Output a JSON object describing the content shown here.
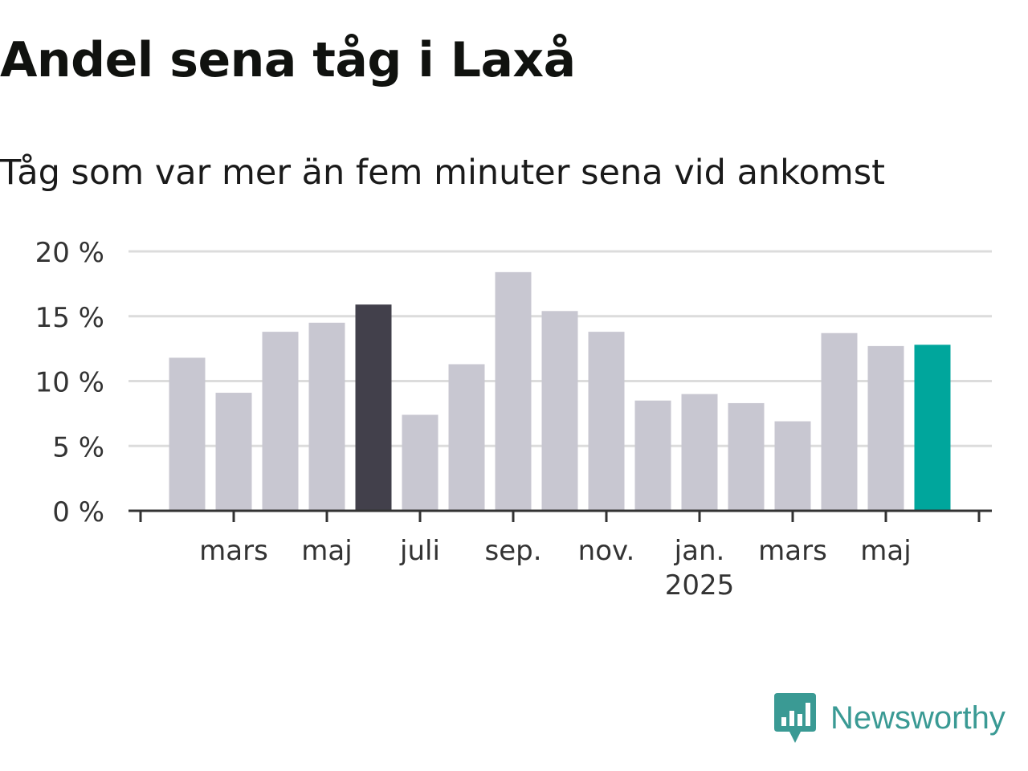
{
  "header": {
    "title": "Andel sena tåg i Laxå",
    "subtitle": "Tåg som var mer än fem minuter sena vid ankomst"
  },
  "brand": {
    "name": "Newsworthy",
    "icon": "newsworthy-logo-icon",
    "color": "#3a9a94"
  },
  "chart_data": {
    "type": "bar",
    "xlabel": "",
    "ylabel": "",
    "ylim": [
      0,
      20
    ],
    "yticks": [
      "0 %",
      "5 %",
      "10 %",
      "15 %",
      "20 %"
    ],
    "grid": true,
    "legend": "none",
    "categories": [
      "2024-02",
      "2024-03",
      "2024-04",
      "2024-05",
      "2024-06",
      "2024-07",
      "2024-08",
      "2024-09",
      "2024-10",
      "2024-11",
      "2024-12",
      "2025-01",
      "2025-02",
      "2025-03",
      "2025-04",
      "2025-05",
      "2025-06"
    ],
    "values": [
      11.8,
      9.1,
      13.8,
      14.5,
      15.9,
      7.4,
      11.3,
      18.4,
      15.4,
      13.8,
      8.5,
      9.0,
      8.3,
      6.9,
      13.7,
      12.7,
      12.8
    ],
    "xtick_labels": [
      {
        "category": "2024-03",
        "label": "mars"
      },
      {
        "category": "2024-05",
        "label": "maj"
      },
      {
        "category": "2024-07",
        "label": "juli"
      },
      {
        "category": "2024-09",
        "label": "sep."
      },
      {
        "category": "2024-11",
        "label": "nov."
      },
      {
        "category": "2025-01",
        "label": "jan.",
        "sublabel": "2025"
      },
      {
        "category": "2025-03",
        "label": "mars"
      },
      {
        "category": "2025-05",
        "label": "maj"
      }
    ],
    "colors": {
      "default": "#c8c7d1",
      "highlight": "#42404b",
      "latest": "#00a69c",
      "grid": "#dcdcdc",
      "axis": "#333333"
    },
    "highlight_categories": [
      "2024-06"
    ],
    "latest_category": "2025-06"
  }
}
